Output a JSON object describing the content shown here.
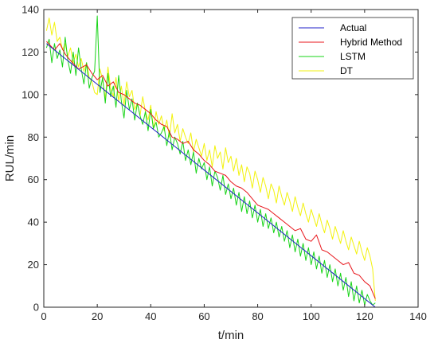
{
  "chart_data": {
    "type": "line",
    "xlabel": "t/min",
    "ylabel": "RUL/min",
    "xlim": [
      0,
      140
    ],
    "ylim": [
      0,
      140
    ],
    "xticks": [
      0,
      20,
      40,
      60,
      80,
      100,
      120,
      140
    ],
    "yticks": [
      0,
      20,
      40,
      60,
      80,
      100,
      120,
      140
    ],
    "grid": false,
    "legend_position": "top-right",
    "series": [
      {
        "name": "Actual",
        "color": "#1f1fc8",
        "x": [
          1,
          124
        ],
        "y": [
          124,
          0
        ]
      },
      {
        "name": "Hybrid Method",
        "color": "#e8151b",
        "x": [
          1,
          4,
          6,
          8,
          10,
          13,
          16,
          18,
          20,
          22,
          24,
          26,
          28,
          30,
          32,
          34,
          36,
          38,
          40,
          42,
          44,
          46,
          48,
          50,
          52,
          54,
          56,
          58,
          60,
          62,
          64,
          66,
          68,
          70,
          72,
          74,
          76,
          78,
          80,
          82,
          84,
          86,
          88,
          90,
          92,
          94,
          96,
          98,
          100,
          102,
          104,
          106,
          108,
          110,
          112,
          114,
          116,
          118,
          120,
          122,
          124
        ],
        "y": [
          125,
          121,
          124,
          119,
          116,
          112,
          114,
          110,
          107,
          109,
          104,
          106,
          101,
          100,
          98,
          96,
          95,
          93,
          91,
          88,
          86,
          85,
          80,
          79,
          77,
          78,
          74,
          72,
          69,
          67,
          64,
          63,
          62,
          59,
          57,
          56,
          54,
          51,
          48,
          47,
          46,
          44,
          42,
          40,
          38,
          36,
          37,
          32,
          31,
          34,
          27,
          26,
          24,
          22,
          20,
          21,
          16,
          15,
          12,
          10,
          4
        ],
        "tick_labels": []
      },
      {
        "name": "LSTM",
        "color": "#17d417",
        "x": [
          1,
          2,
          3,
          4,
          5,
          6,
          7,
          8,
          9,
          10,
          11,
          12,
          13,
          14,
          15,
          16,
          17,
          18,
          19,
          20,
          21,
          22,
          23,
          24,
          25,
          26,
          27,
          28,
          29,
          30,
          31,
          32,
          33,
          34,
          35,
          36,
          37,
          38,
          39,
          40,
          41,
          42,
          43,
          44,
          45,
          46,
          47,
          48,
          49,
          50,
          51,
          52,
          53,
          54,
          55,
          56,
          57,
          58,
          59,
          60,
          61,
          62,
          63,
          64,
          65,
          66,
          67,
          68,
          69,
          70,
          71,
          72,
          73,
          74,
          75,
          76,
          77,
          78,
          79,
          80,
          81,
          82,
          83,
          84,
          85,
          86,
          87,
          88,
          89,
          90,
          91,
          92,
          93,
          94,
          95,
          96,
          97,
          98,
          99,
          100,
          101,
          102,
          103,
          104,
          105,
          106,
          107,
          108,
          109,
          110,
          111,
          112,
          113,
          114,
          115,
          116,
          117,
          118,
          119,
          120,
          121,
          122,
          123,
          124
        ],
        "y": [
          122,
          126,
          115,
          124,
          117,
          121,
          113,
          127,
          116,
          110,
          120,
          109,
          122,
          112,
          105,
          115,
          103,
          108,
          111,
          137,
          101,
          108,
          96,
          110,
          99,
          104,
          94,
          109,
          97,
          89,
          102,
          93,
          98,
          88,
          96,
          90,
          86,
          92,
          83,
          93,
          84,
          87,
          80,
          82,
          85,
          76,
          83,
          74,
          80,
          77,
          72,
          78,
          69,
          74,
          67,
          73,
          63,
          70,
          65,
          68,
          60,
          66,
          57,
          64,
          61,
          55,
          62,
          53,
          58,
          51,
          56,
          48,
          54,
          45,
          52,
          44,
          50,
          42,
          48,
          40,
          46,
          38,
          44,
          37,
          42,
          35,
          40,
          33,
          38,
          31,
          36,
          28,
          34,
          26,
          32,
          24,
          30,
          22,
          28,
          20,
          26,
          18,
          24,
          16,
          22,
          14,
          20,
          12,
          18,
          10,
          16,
          8,
          14,
          5,
          12,
          3,
          10,
          2,
          8,
          1,
          6,
          3,
          1,
          2
        ]
      },
      {
        "name": "DT",
        "color": "#f2f20c",
        "x": [
          1,
          2,
          3,
          4,
          5,
          6,
          7,
          8,
          9,
          10,
          11,
          12,
          13,
          14,
          15,
          16,
          17,
          18,
          19,
          20,
          21,
          22,
          23,
          24,
          25,
          26,
          27,
          28,
          29,
          30,
          31,
          32,
          33,
          34,
          35,
          36,
          37,
          38,
          39,
          40,
          41,
          42,
          43,
          44,
          45,
          46,
          47,
          48,
          49,
          50,
          51,
          52,
          53,
          54,
          55,
          56,
          57,
          58,
          59,
          60,
          61,
          62,
          63,
          64,
          65,
          66,
          67,
          68,
          69,
          70,
          71,
          72,
          73,
          74,
          75,
          76,
          77,
          78,
          79,
          80,
          81,
          82,
          83,
          84,
          85,
          86,
          87,
          88,
          89,
          90,
          91,
          92,
          93,
          94,
          95,
          96,
          97,
          98,
          99,
          100,
          101,
          102,
          103,
          104,
          105,
          106,
          107,
          108,
          109,
          110,
          111,
          112,
          113,
          114,
          115,
          116,
          117,
          118,
          119,
          120,
          121,
          122,
          123,
          124
        ],
        "y": [
          130,
          136,
          128,
          134,
          125,
          127,
          121,
          124,
          118,
          122,
          115,
          119,
          113,
          117,
          111,
          115,
          108,
          106,
          101,
          100,
          112,
          107,
          98,
          113,
          103,
          99,
          108,
          97,
          104,
          95,
          106,
          99,
          102,
          93,
          96,
          90,
          99,
          92,
          88,
          95,
          84,
          92,
          86,
          90,
          83,
          88,
          80,
          91,
          82,
          86,
          78,
          84,
          80,
          77,
          82,
          73,
          79,
          75,
          71,
          77,
          69,
          74,
          66,
          76,
          70,
          73,
          65,
          75,
          68,
          71,
          64,
          70,
          62,
          67,
          59,
          66,
          63,
          56,
          64,
          60,
          54,
          61,
          57,
          51,
          58,
          55,
          49,
          57,
          52,
          48,
          54,
          50,
          45,
          52,
          47,
          43,
          49,
          44,
          40,
          46,
          42,
          38,
          44,
          39,
          35,
          41,
          37,
          32,
          38,
          34,
          30,
          36,
          31,
          27,
          33,
          29,
          25,
          31,
          26,
          22,
          28,
          24,
          18,
          3
        ]
      }
    ]
  }
}
